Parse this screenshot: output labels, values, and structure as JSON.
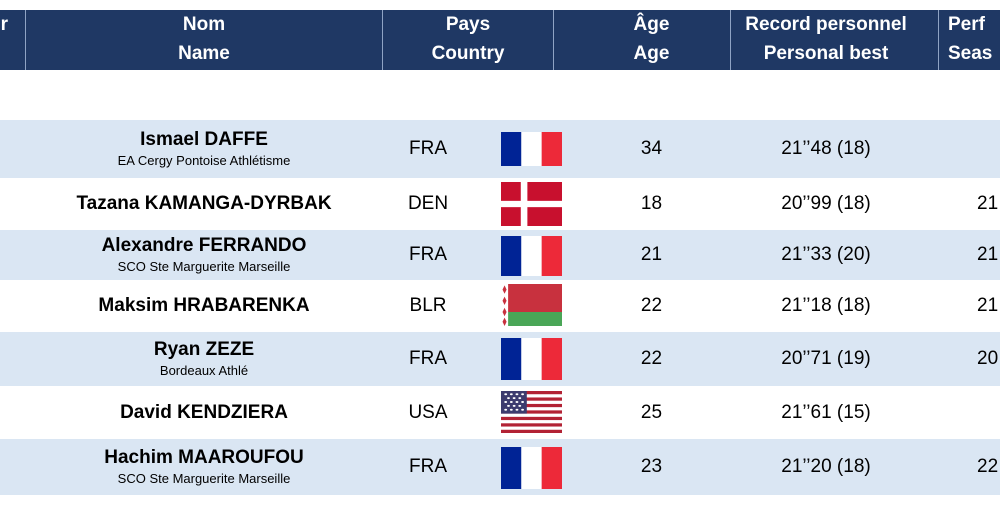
{
  "table": {
    "header": [
      [
        "r"
      ],
      [
        "Nom",
        "Name"
      ],
      [
        "Pays",
        "Country"
      ],
      [
        "Âge",
        "Age"
      ],
      [
        "Record personnel",
        "Personal best"
      ],
      [
        "Perf",
        "Seas"
      ]
    ],
    "rows": [
      {
        "name": "Ismael DAFFE",
        "club": "EA Cergy Pontoise Athlétisme",
        "country": "FRA",
        "age": 34,
        "record": "21’’48 (18)"
      },
      {
        "name": "Tazana KAMANGA-DYRBAK",
        "country": "DEN",
        "age": 18,
        "record": "20’’99 (18)",
        "season": "21"
      },
      {
        "name": "Alexandre FERRANDO",
        "club": "SCO Ste Marguerite Marseille",
        "country": "FRA",
        "age": 21,
        "record": "21’’33 (20)",
        "season": "21"
      },
      {
        "name": "Maksim HRABARENKA",
        "country": "BLR",
        "age": 22,
        "record": "21’’18 (18)",
        "season": "21"
      },
      {
        "name": "Ryan ZEZE",
        "club": "Bordeaux Athlé",
        "country": "FRA",
        "age": 22,
        "record": "20’’71 (19)",
        "season": "20"
      },
      {
        "name": "David KENDZIERA",
        "country": "USA",
        "age": 25,
        "record": "21’’61 (15)"
      },
      {
        "name": "Hachim MAAROUFOU",
        "club": "SCO Ste Marguerite Marseille",
        "country": "FRA",
        "age": 23,
        "record": "21’’20 (18)",
        "season": "22"
      }
    ]
  }
}
